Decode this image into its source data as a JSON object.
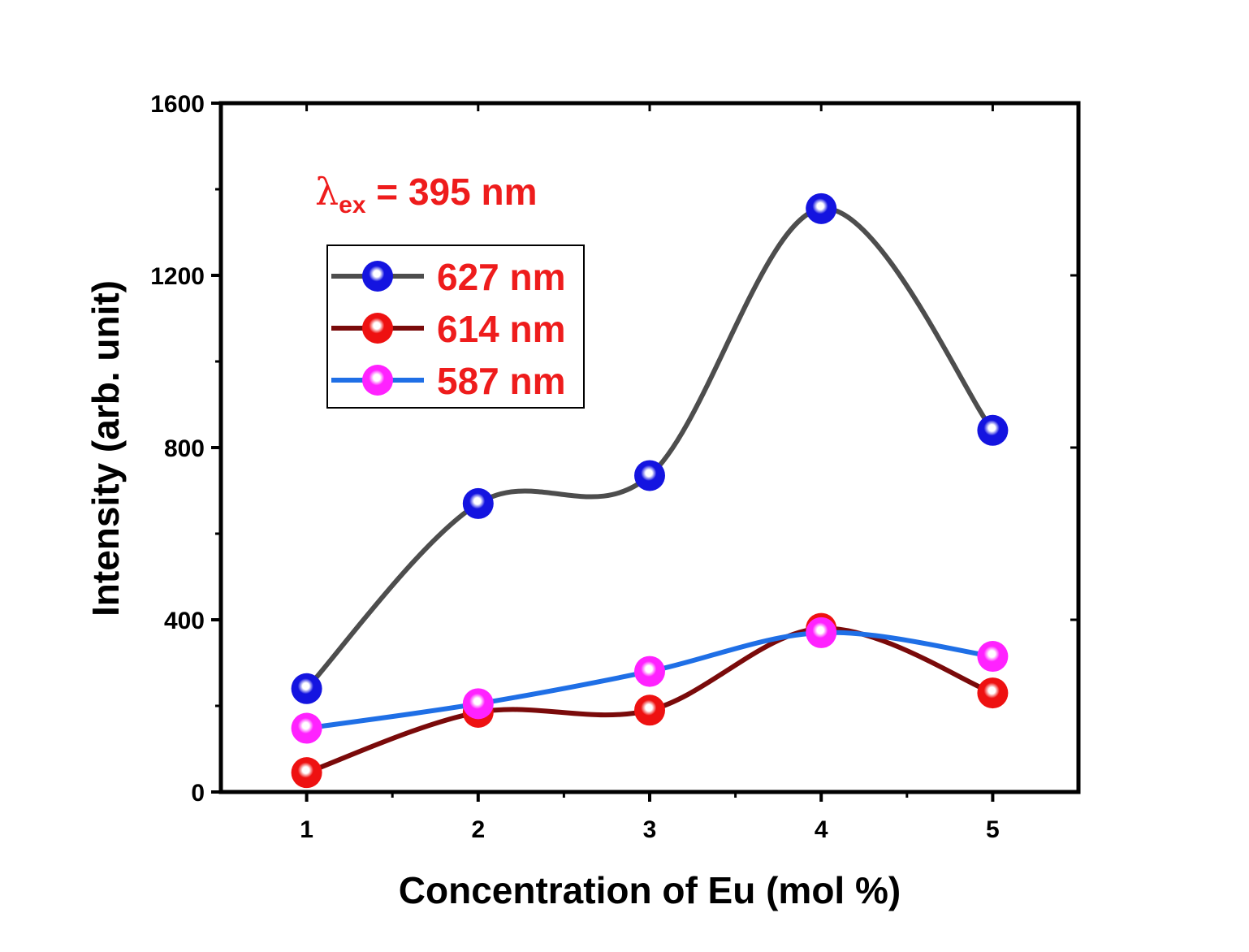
{
  "chart_data": {
    "type": "line",
    "title": "",
    "xlabel": "Concentration of Eu (mol %)",
    "ylabel": "Intensity (arb. unit)",
    "x": [
      1,
      2,
      3,
      4,
      5
    ],
    "xlim": [
      0.5,
      5.5
    ],
    "ylim": [
      0,
      1600
    ],
    "xticks": [
      "1",
      "2",
      "3",
      "4",
      "5"
    ],
    "yticks": [
      "0",
      "400",
      "800",
      "1200",
      "1600"
    ],
    "grid": false,
    "legend_position": "upper-left",
    "annotation": {
      "symbol": "λ",
      "subscript": "ex",
      "text": " = 395 nm"
    },
    "series": [
      {
        "name": "627 nm",
        "values": [
          240,
          670,
          735,
          1355,
          840
        ],
        "line_color": "#4d4d4d",
        "marker_color": "#1414e0"
      },
      {
        "name": "614 nm",
        "values": [
          45,
          185,
          190,
          380,
          230
        ],
        "line_color": "#7a0a0a",
        "marker_color": "#ee1111"
      },
      {
        "name": "587 nm",
        "values": [
          148,
          205,
          280,
          370,
          315
        ],
        "line_color": "#1f6fe6",
        "marker_color": "#ff22ff"
      }
    ]
  }
}
